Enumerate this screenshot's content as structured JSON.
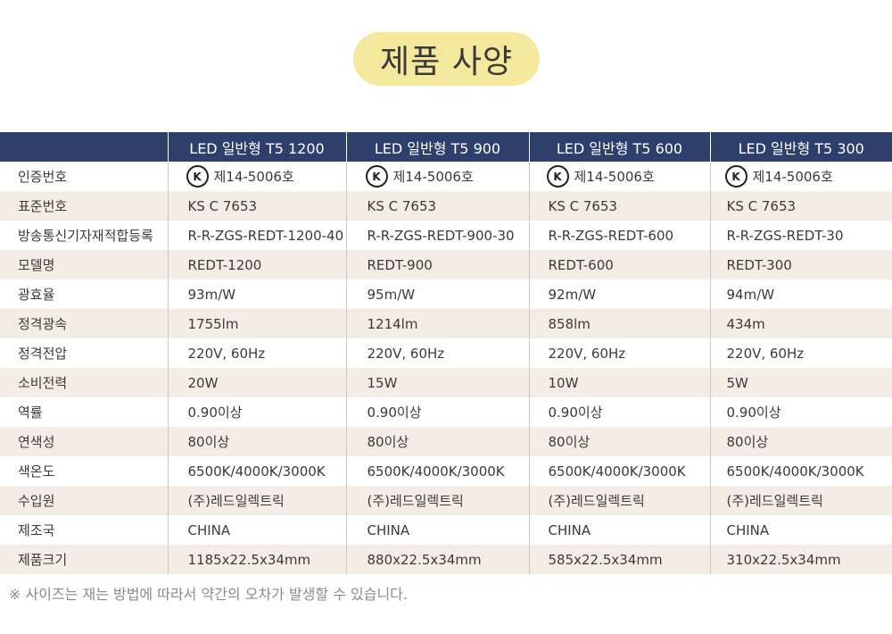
{
  "title": "제품 사양",
  "columns": [
    "",
    "LED 일반형  T5 1200",
    "LED 일반형  T5 900",
    "LED 일반형  T5 600",
    "LED 일반형  T5 300"
  ],
  "rows": [
    {
      "label": "인증번호",
      "values": [
        "제14-5006호",
        "제14-5006호",
        "제14-5006호",
        "제14-5006호"
      ]
    },
    {
      "label": "표준번호",
      "values": [
        "KS C 7653",
        "KS C 7653",
        "KS C 7653",
        "KS C 7653"
      ]
    },
    {
      "label": "방송통신기자재적합등록",
      "values": [
        "R-R-ZGS-REDT-1200-40",
        "R-R-ZGS-REDT-900-30",
        "R-R-ZGS-REDT-600",
        "R-R-ZGS-REDT-30"
      ]
    },
    {
      "label": "모델명",
      "values": [
        "REDT-1200",
        "REDT-900",
        "REDT-600",
        "REDT-300"
      ]
    },
    {
      "label": "광효율",
      "values": [
        "93m/W",
        "95m/W",
        "92m/W",
        "94m/W"
      ]
    },
    {
      "label": "정격광속",
      "values": [
        "1755lm",
        "1214lm",
        "858lm",
        "434m"
      ]
    },
    {
      "label": "정격전압",
      "values": [
        "220V, 60Hz",
        "220V, 60Hz",
        "220V, 60Hz",
        "220V, 60Hz"
      ]
    },
    {
      "label": "소비전력",
      "values": [
        "20W",
        "15W",
        "10W",
        "5W"
      ]
    },
    {
      "label": "역률",
      "values": [
        "0.90이상",
        "0.90이상",
        "0.90이상",
        "0.90이상"
      ]
    },
    {
      "label": "연색성",
      "values": [
        "80이상",
        "80이상",
        "80이상",
        "80이상"
      ]
    },
    {
      "label": "색온도",
      "values": [
        "6500K/4000K/3000K",
        "6500K/4000K/3000K",
        "6500K/4000K/3000K",
        "6500K/4000K/3000K"
      ]
    },
    {
      "label": "수입원",
      "values": [
        "(주)레드일렉트릭",
        "(주)레드일렉트릭",
        "(주)레드일렉트릭",
        "(주)레드일렉트릭"
      ]
    },
    {
      "label": "제조국",
      "values": [
        "CHINA",
        "CHINA",
        "CHINA",
        "CHINA"
      ]
    },
    {
      "label": "제품크기",
      "values": [
        "1185x22.5x34mm",
        "880x22.5x34mm",
        "585x22.5x34mm",
        "310x22.5x34mm"
      ]
    }
  ],
  "cert_mark_icon": "ks-certification-mark-icon",
  "cert_mark_glyph": "K",
  "note": "※ 사이즈는 재는 방법에 따라서 약간의 오차가 발생할 수 있습니다.",
  "colors": {
    "title_pill": "#f4e89c",
    "header_bg": "#2f3f6b",
    "header_text": "#ffffff",
    "row_alt": "#f4ede6",
    "note_text": "#8a8a8a"
  }
}
